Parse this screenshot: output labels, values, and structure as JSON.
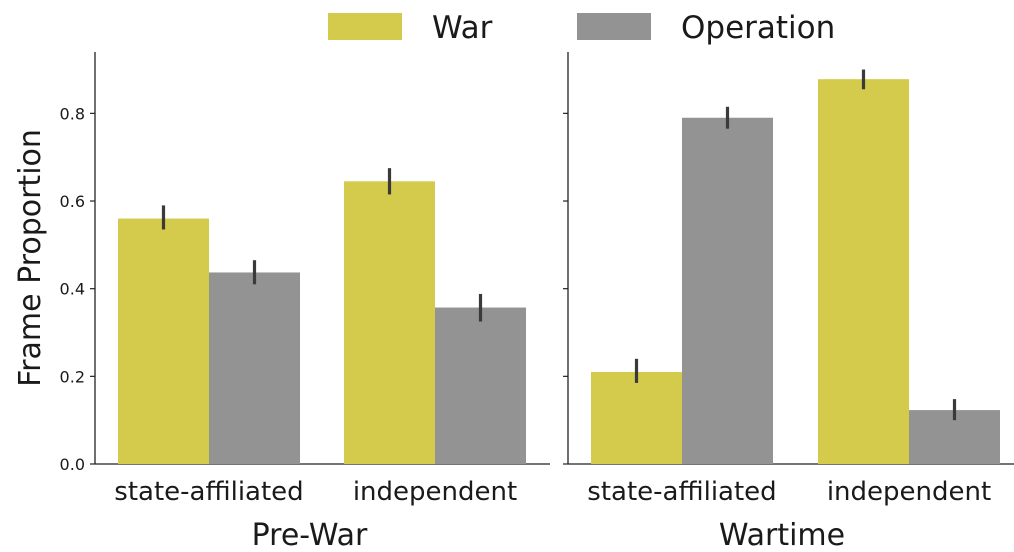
{
  "legend": [
    {
      "name": "War",
      "color": "#d4cb4c"
    },
    {
      "name": "Operation",
      "color": "#939393"
    }
  ],
  "colors": {
    "war": "#d4cb4c",
    "operation": "#939393",
    "error_bar": "#3a3a3a",
    "axis": "#222222"
  },
  "chart_data": {
    "type": "bar",
    "ylabel": "Frame Proportion",
    "ylim": [
      0,
      0.94
    ],
    "yticks": [
      "0.0",
      "0.2",
      "0.4",
      "0.6",
      "0.8"
    ],
    "yticks_values": [
      0.0,
      0.2,
      0.4,
      0.6,
      0.8
    ],
    "legend_position": "top-center",
    "grid": false,
    "panels": [
      {
        "title": "Pre-War",
        "categories": [
          "state-affiliated",
          "independent"
        ],
        "series": [
          {
            "name": "War",
            "values": [
              0.56,
              0.645
            ],
            "errors": [
              [
                0.535,
                0.59
              ],
              [
                0.615,
                0.675
              ]
            ]
          },
          {
            "name": "Operation",
            "values": [
              0.437,
              0.357
            ],
            "errors": [
              [
                0.41,
                0.465
              ],
              [
                0.325,
                0.388
              ]
            ]
          }
        ]
      },
      {
        "title": "Wartime",
        "categories": [
          "state-affiliated",
          "independent"
        ],
        "series": [
          {
            "name": "War",
            "values": [
              0.21,
              0.878
            ],
            "errors": [
              [
                0.185,
                0.24
              ],
              [
                0.855,
                0.9
              ]
            ]
          },
          {
            "name": "Operation",
            "values": [
              0.79,
              0.123
            ],
            "errors": [
              [
                0.765,
                0.815
              ],
              [
                0.1,
                0.148
              ]
            ]
          }
        ]
      }
    ]
  }
}
